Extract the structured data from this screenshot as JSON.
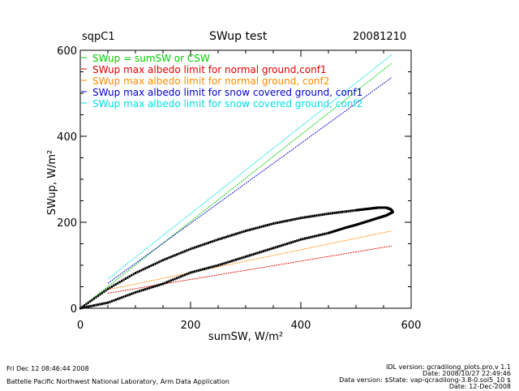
{
  "header": {
    "site": "sqpC1",
    "title": "SWup test",
    "date": "20081210"
  },
  "chart_data": {
    "type": "scatter",
    "title": "SWup test",
    "xlabel": "sumSW, W/m²",
    "ylabel": "SWup, W/m²",
    "xlim": [
      0,
      600
    ],
    "ylim": [
      0,
      600
    ],
    "xticks": [
      "0",
      "200",
      "400",
      "600"
    ],
    "yticks": [
      "0",
      "200",
      "400",
      "600"
    ],
    "colors": {
      "sumsw_or_csw": "#00cc00",
      "normal_conf1": "#dd0000",
      "normal_conf2": "#ff8c00",
      "snow_conf1": "#0000cc",
      "snow_conf2": "#00e0e8",
      "data": "#000000"
    },
    "legend": [
      {
        "label": "SWup = sumSW or CSW",
        "color_key": "sumsw_or_csw"
      },
      {
        "label": "SWup max albedo limit for normal ground,conf1",
        "color_key": "normal_conf1"
      },
      {
        "label": "SWup max albedo limit for normal ground, conf2",
        "color_key": "normal_conf2"
      },
      {
        "label": "SWup max albedo limit for snow covered ground, conf1",
        "color_key": "snow_conf1"
      },
      {
        "label": "SWup max albedo limit for snow covered ground, conf2",
        "color_key": "snow_conf2"
      }
    ],
    "series": [
      {
        "name": "SWup = sumSW or CSW",
        "color_key": "sumsw_or_csw",
        "x": [
          0,
          565
        ],
        "y": [
          0,
          570
        ]
      },
      {
        "name": "normal ground, conf1",
        "color_key": "normal_conf1",
        "x": [
          50,
          565
        ],
        "y": [
          35,
          145
        ]
      },
      {
        "name": "normal ground, conf2",
        "color_key": "normal_conf2",
        "x": [
          50,
          565
        ],
        "y": [
          43,
          180
        ]
      },
      {
        "name": "snow covered ground, conf1",
        "color_key": "snow_conf1",
        "x": [
          50,
          565
        ],
        "y": [
          58,
          537
        ]
      },
      {
        "name": "snow covered ground, conf2",
        "color_key": "snow_conf2",
        "x": [
          50,
          565
        ],
        "y": [
          68,
          590
        ]
      }
    ],
    "scatter_upper": {
      "name": "SWup data (upper branch)",
      "x": [
        0,
        50,
        100,
        150,
        200,
        250,
        300,
        350,
        400,
        450,
        500,
        520,
        540,
        555,
        563,
        567
      ],
      "y": [
        0,
        45,
        82,
        112,
        138,
        160,
        180,
        197,
        210,
        220,
        228,
        231,
        234,
        234,
        230,
        224
      ]
    },
    "scatter_lower": {
      "name": "SWup data (lower branch)",
      "x": [
        567,
        555,
        540,
        520,
        500,
        480,
        450,
        400,
        350,
        300,
        250,
        200,
        150,
        100,
        50,
        0
      ],
      "y": [
        224,
        216,
        210,
        202,
        194,
        187,
        175,
        160,
        140,
        120,
        100,
        83,
        57,
        37,
        13,
        0
      ]
    }
  },
  "footer": {
    "timestamp": "Fri Dec 12 08:46:44 2008",
    "organization": "Battelle Pacific Northwest National Laboratory, Arm Data Application",
    "idl_version": "IDL version: gcradilong_plots.pro,v 1.1",
    "idl_date": "Date: 2008/10/27 22:49:46",
    "data_version": "Data version: $State: vap-qcradilong-3.8-0.sol5_10 $",
    "data_date": "Date: 12-Dec-2008"
  }
}
